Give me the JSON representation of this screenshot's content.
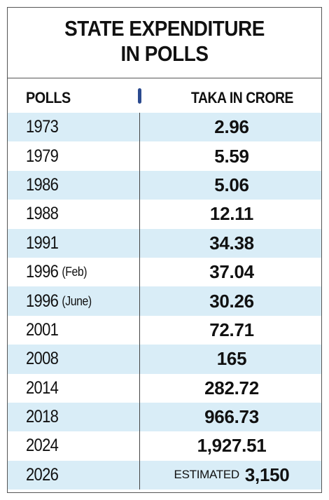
{
  "title_line1": "STATE EXPENDITURE",
  "title_line2": "IN POLLS",
  "colors": {
    "stripe": "#d9edf7",
    "marker": "#2b4a8f",
    "text": "#111111",
    "border": "#555555"
  },
  "chart_data": {
    "type": "table",
    "columns": [
      "POLLS",
      "TAKA IN CRORE"
    ],
    "rows": [
      {
        "year": "1973",
        "note": "",
        "prefix": "",
        "amount": "2.96"
      },
      {
        "year": "1979",
        "note": "",
        "prefix": "",
        "amount": "5.59"
      },
      {
        "year": "1986",
        "note": "",
        "prefix": "",
        "amount": "5.06"
      },
      {
        "year": "1988",
        "note": "",
        "prefix": "",
        "amount": "12.11"
      },
      {
        "year": "1991",
        "note": "",
        "prefix": "",
        "amount": "34.38"
      },
      {
        "year": "1996",
        "note": "(Feb)",
        "prefix": "",
        "amount": "37.04"
      },
      {
        "year": "1996",
        "note": "(June)",
        "prefix": "",
        "amount": "30.26"
      },
      {
        "year": "2001",
        "note": "",
        "prefix": "",
        "amount": "72.71"
      },
      {
        "year": "2008",
        "note": "",
        "prefix": "",
        "amount": "165"
      },
      {
        "year": "2014",
        "note": "",
        "prefix": "",
        "amount": "282.72"
      },
      {
        "year": "2018",
        "note": "",
        "prefix": "",
        "amount": "966.73"
      },
      {
        "year": "2024",
        "note": "",
        "prefix": "",
        "amount": "1,927.51"
      },
      {
        "year": "2026",
        "note": "",
        "prefix": "ESTIMATED",
        "amount": "3,150"
      }
    ]
  }
}
